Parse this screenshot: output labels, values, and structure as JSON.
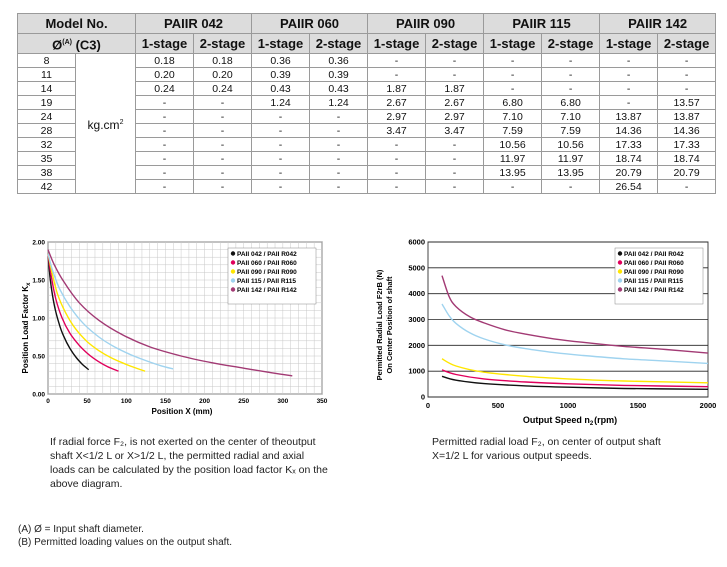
{
  "table": {
    "header_model": "Model No.",
    "header_diameter": "Ø",
    "header_diameter_sup": "(A)",
    "header_diameter_code": "(C3)",
    "unit": "kg.cm",
    "unit_sup": "2",
    "models": [
      "PAIIR 042",
      "PAIIR 060",
      "PAIIR 090",
      "PAIIR 115",
      "PAIIR 142"
    ],
    "stages": [
      "1-stage",
      "2-stage",
      "1-stage",
      "2-stage",
      "1-stage",
      "2-stage",
      "1-stage",
      "2-stage",
      "1-stage",
      "2-stage"
    ],
    "rows": [
      {
        "d": "8",
        "v": [
          "0.18",
          "0.18",
          "0.36",
          "0.36",
          "-",
          "-",
          "-",
          "-",
          "-",
          "-"
        ]
      },
      {
        "d": "11",
        "v": [
          "0.20",
          "0.20",
          "0.39",
          "0.39",
          "-",
          "-",
          "-",
          "-",
          "-",
          "-"
        ]
      },
      {
        "d": "14",
        "v": [
          "0.24",
          "0.24",
          "0.43",
          "0.43",
          "1.87",
          "1.87",
          "-",
          "-",
          "-",
          "-"
        ]
      },
      {
        "d": "19",
        "v": [
          "-",
          "-",
          "1.24",
          "1.24",
          "2.67",
          "2.67",
          "6.80",
          "6.80",
          "-",
          "13.57"
        ]
      },
      {
        "d": "24",
        "v": [
          "-",
          "-",
          "-",
          "-",
          "2.97",
          "2.97",
          "7.10",
          "7.10",
          "13.87",
          "13.87"
        ]
      },
      {
        "d": "28",
        "v": [
          "-",
          "-",
          "-",
          "-",
          "3.47",
          "3.47",
          "7.59",
          "7.59",
          "14.36",
          "14.36"
        ]
      },
      {
        "d": "32",
        "v": [
          "-",
          "-",
          "-",
          "-",
          "-",
          "-",
          "10.56",
          "10.56",
          "17.33",
          "17.33"
        ]
      },
      {
        "d": "35",
        "v": [
          "-",
          "-",
          "-",
          "-",
          "-",
          "-",
          "11.97",
          "11.97",
          "18.74",
          "18.74"
        ]
      },
      {
        "d": "38",
        "v": [
          "-",
          "-",
          "-",
          "-",
          "-",
          "-",
          "13.95",
          "13.95",
          "20.79",
          "20.79"
        ]
      },
      {
        "d": "42",
        "v": [
          "-",
          "-",
          "-",
          "-",
          "-",
          "-",
          "-",
          "-",
          "26.54",
          "-"
        ]
      }
    ]
  },
  "chart_data": [
    {
      "type": "line",
      "title": "",
      "xlabel": "Position X (mm)",
      "ylabel": "Position Load Factor K",
      "ylabel_sub": "x",
      "xlim": [
        0,
        350
      ],
      "ylim": [
        0,
        2.0
      ],
      "xticks": [
        "0",
        "50",
        "100",
        "150",
        "200",
        "250",
        "300",
        "350"
      ],
      "yticks": [
        "0.00",
        "0.50",
        "1.00",
        "1.50",
        "2.00"
      ],
      "legend_position": "top-right",
      "series": [
        {
          "name": "PAII 042 / PAII R042",
          "color": "#111111",
          "x": [
            0,
            3,
            8,
            14,
            20,
            28,
            36,
            44,
            52
          ],
          "y": [
            1.85,
            1.5,
            1.17,
            0.93,
            0.76,
            0.6,
            0.48,
            0.39,
            0.32
          ]
        },
        {
          "name": "PAII 060 / PAII R060",
          "color": "#e0005c",
          "x": [
            0,
            4,
            10,
            18,
            28,
            40,
            52,
            64,
            76,
            90
          ],
          "y": [
            1.85,
            1.56,
            1.25,
            1.0,
            0.8,
            0.64,
            0.52,
            0.43,
            0.36,
            0.3
          ]
        },
        {
          "name": "PAII 090 / PAII R090",
          "color": "#ffe600",
          "x": [
            0,
            5,
            12,
            22,
            35,
            50,
            65,
            80,
            95,
            110,
            124
          ],
          "y": [
            1.85,
            1.6,
            1.32,
            1.08,
            0.86,
            0.69,
            0.57,
            0.48,
            0.41,
            0.35,
            0.3
          ]
        },
        {
          "name": "PAII 115 / PAII R115",
          "color": "#9fd3ef",
          "x": [
            0,
            6,
            15,
            28,
            45,
            65,
            85,
            105,
            125,
            145,
            160
          ],
          "y": [
            1.85,
            1.62,
            1.38,
            1.15,
            0.93,
            0.75,
            0.62,
            0.52,
            0.44,
            0.37,
            0.33
          ]
        },
        {
          "name": "PAII 142 / PAII R142",
          "color": "#a23a74",
          "x": [
            0,
            8,
            20,
            40,
            65,
            95,
            130,
            170,
            210,
            250,
            285,
            312
          ],
          "y": [
            1.9,
            1.7,
            1.48,
            1.2,
            0.97,
            0.78,
            0.62,
            0.5,
            0.41,
            0.34,
            0.28,
            0.24
          ]
        }
      ]
    },
    {
      "type": "line",
      "title": "",
      "xlabel": "Output Speed n",
      "xlabel_sub": "2",
      "xlabel_unit": "(rpm)",
      "ylabel_line1": "Permitted Radial Load F2rB (N)",
      "ylabel_line2": "On Center Position of shaft",
      "xlim": [
        0,
        2000
      ],
      "ylim": [
        0,
        6000
      ],
      "xticks": [
        "0",
        "500",
        "1000",
        "1500",
        "2000"
      ],
      "yticks": [
        "0",
        "1000",
        "2000",
        "3000",
        "4000",
        "5000",
        "6000"
      ],
      "legend_position": "top-right",
      "series": [
        {
          "name": "PAII 042 / PAII R042",
          "color": "#111111",
          "x": [
            100,
            200,
            400,
            700,
            1000,
            1400,
            2000
          ],
          "y": [
            800,
            650,
            520,
            430,
            380,
            330,
            300
          ]
        },
        {
          "name": "PAII 060 / PAII R060",
          "color": "#e0005c",
          "x": [
            100,
            200,
            400,
            700,
            1000,
            1400,
            2000
          ],
          "y": [
            1050,
            870,
            700,
            580,
            510,
            450,
            400
          ]
        },
        {
          "name": "PAII 090 / PAII R090",
          "color": "#ffe600",
          "x": [
            100,
            200,
            400,
            700,
            1000,
            1400,
            2000
          ],
          "y": [
            1480,
            1200,
            960,
            800,
            700,
            620,
            550
          ]
        },
        {
          "name": "PAII 115 / PAII R115",
          "color": "#9fd3ef",
          "x": [
            100,
            150,
            200,
            300,
            400,
            550,
            700,
            900,
            1100,
            1400,
            1700,
            2000
          ],
          "y": [
            3600,
            3150,
            2850,
            2480,
            2250,
            2020,
            1870,
            1720,
            1610,
            1480,
            1390,
            1300
          ]
        },
        {
          "name": "PAII 142 / PAII R142",
          "color": "#a23a74",
          "x": [
            100,
            150,
            200,
            300,
            400,
            550,
            700,
            900,
            1100,
            1400,
            1700,
            2000
          ],
          "y": [
            4700,
            3900,
            3500,
            3100,
            2870,
            2600,
            2430,
            2250,
            2120,
            1960,
            1840,
            1700
          ]
        }
      ]
    }
  ],
  "captions": {
    "left": [
      "If radial force F₂, is not exerted on the center of theoutput",
      "shaft X<1/2 L or X>1/2 L, the permitted radial and axial",
      "loads can be calculated by the position load factor Kₓ on the",
      "above diagram."
    ],
    "right": [
      "Permitted radial load F₂, on center of output shaft",
      "X=1/2 L for various output speeds."
    ]
  },
  "footnotes": [
    "(A)  Ø = Input shaft diameter.",
    "(B)  Permitted loading values on the output shaft."
  ]
}
